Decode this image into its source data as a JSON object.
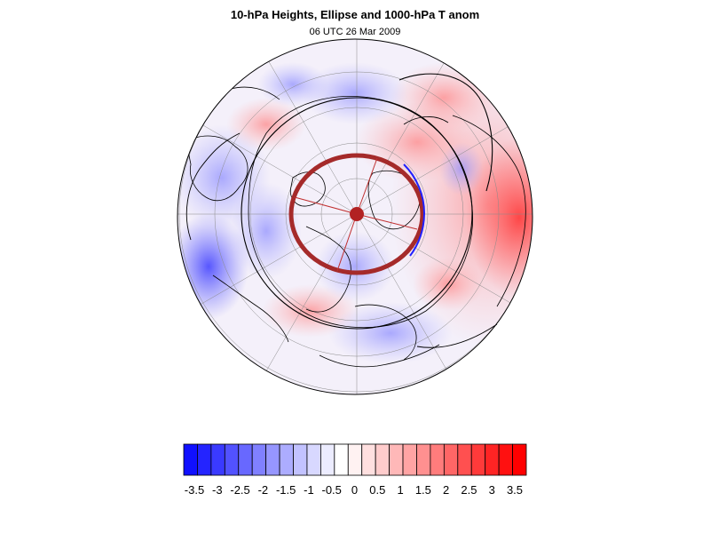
{
  "title": "10-hPa Heights, Ellipse and 1000-hPa T anom",
  "subtitle": "06 UTC 26 Mar 2009",
  "colorbar": {
    "labels": [
      "-3.5",
      "-3",
      "-2.5",
      "-2",
      "-1.5",
      "-1",
      "-0.5",
      "0",
      "0.5",
      "1",
      "1.5",
      "2",
      "2.5",
      "3",
      "3.5"
    ],
    "colors": [
      "#1010ff",
      "#2424ff",
      "#3a3aff",
      "#5252ff",
      "#6868ff",
      "#8080ff",
      "#9696ff",
      "#acacff",
      "#c2c2ff",
      "#d8d8ff",
      "#ececff",
      "#ffffff",
      "#fff2f2",
      "#ffe0e0",
      "#ffcccc",
      "#ffb8b8",
      "#ffa4a4",
      "#ff9090",
      "#ff7c7c",
      "#ff6666",
      "#ff5050",
      "#ff3a3a",
      "#ff2424",
      "#ff1010",
      "#ff0000"
    ]
  },
  "map": {
    "projection": "polar-orthographic",
    "ellipse_color": "#a52a2a",
    "contour_color": "#000000",
    "coast_color": "#000000",
    "graticule_color": "#8a8a8a"
  }
}
